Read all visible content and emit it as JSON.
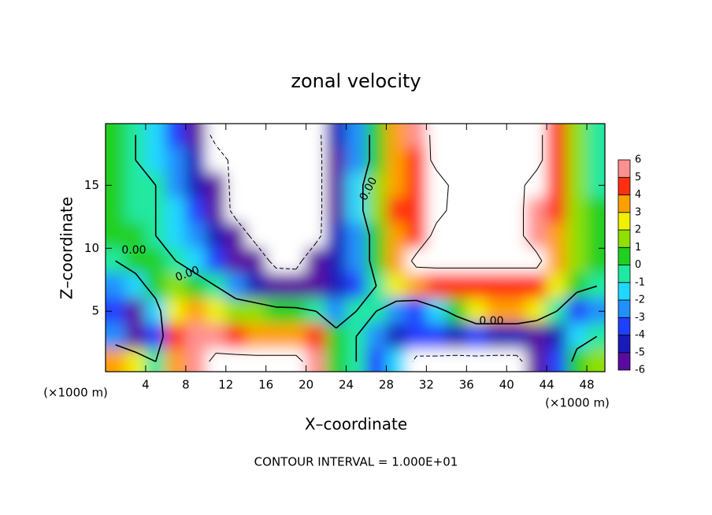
{
  "chart_data": {
    "type": "contour",
    "title": "zonal velocity",
    "xlabel": "X–coordinate",
    "ylabel": "Z–coordinate",
    "x_unit": "(×1000 m)",
    "x_unit_right": "(×1000 m)",
    "footer": "CONTOUR INTERVAL = 1.000E+01",
    "xlim": [
      0,
      49.8
    ],
    "ylim": [
      0.2,
      19.9
    ],
    "xticks": [
      4,
      8,
      12,
      16,
      20,
      24,
      28,
      32,
      36,
      40,
      44,
      48
    ],
    "yticks": [
      5,
      10,
      15
    ],
    "x": [
      1,
      3,
      5,
      7,
      9,
      11,
      13,
      15,
      17,
      19,
      21,
      23,
      25,
      27,
      29,
      31,
      33,
      35,
      37,
      39,
      41,
      43,
      45,
      47,
      49
    ],
    "y": [
      19,
      17,
      15,
      13,
      11,
      9,
      7,
      5,
      3,
      1
    ],
    "z": [
      [
        1,
        0,
        -1,
        -3,
        -5,
        -12,
        -12,
        -12,
        -12,
        -12,
        -12,
        -4,
        -2,
        1,
        4,
        6,
        12,
        12,
        12,
        12,
        12,
        12,
        5,
        2,
        0
      ],
      [
        1,
        0,
        -1,
        -2,
        -4,
        -7,
        -12,
        -12,
        -12,
        -12,
        -12,
        -5,
        -2,
        1,
        4,
        5,
        12,
        12,
        12,
        12,
        12,
        12,
        5,
        2,
        0
      ],
      [
        1,
        0,
        0,
        -2,
        -4,
        -6,
        -12,
        -12,
        -12,
        -12,
        -12,
        -5,
        -1,
        2,
        4,
        5,
        7,
        12,
        12,
        12,
        12,
        7,
        5,
        2,
        0
      ],
      [
        1,
        0,
        0,
        -1,
        -3,
        -5,
        -12,
        -12,
        -12,
        -12,
        -12,
        -5,
        -1,
        2,
        5,
        5,
        8,
        12,
        12,
        12,
        12,
        6,
        5,
        2,
        1
      ],
      [
        1,
        1,
        0,
        -1,
        -2,
        -4,
        -6,
        -12,
        -12,
        -12,
        -12,
        -4,
        -2,
        1,
        4,
        5,
        12,
        12,
        12,
        12,
        12,
        6,
        4,
        2,
        1
      ],
      [
        0,
        1,
        1,
        0,
        -1,
        -3,
        -5,
        -6,
        -12,
        -12,
        -5,
        -4,
        -2,
        1,
        4,
        12,
        12,
        12,
        12,
        12,
        12,
        12,
        4,
        2,
        1
      ],
      [
        -2,
        -1,
        1,
        2,
        1,
        0,
        -2,
        -4,
        -5,
        -6,
        -6,
        -4,
        -3,
        0,
        3,
        4,
        5,
        5,
        5,
        5,
        5,
        5,
        3,
        1,
        0
      ],
      [
        -3,
        -5,
        -1,
        3,
        4,
        3,
        2,
        2,
        1,
        1,
        0,
        -2,
        0,
        0,
        -2,
        -3,
        -1,
        1,
        3,
        4,
        4,
        3,
        0,
        -3,
        -2
      ],
      [
        -2,
        -5,
        -3,
        5,
        6,
        6,
        5,
        4,
        4,
        4,
        5,
        1,
        0,
        -2,
        -4,
        -3,
        -3,
        -4,
        -3,
        -4,
        -4,
        -5,
        -4,
        -1,
        0
      ],
      [
        4,
        3,
        0,
        4,
        6,
        12,
        12,
        12,
        12,
        12,
        6,
        1,
        0,
        -3,
        -1,
        -12,
        -12,
        -12,
        -12,
        -12,
        -12,
        -5,
        -3,
        1,
        2
      ]
    ],
    "colorbar_levels": [
      -6,
      -5,
      -4,
      -3,
      -2,
      -1,
      0,
      1,
      2,
      3,
      4,
      5,
      6
    ],
    "colorbar_colors": [
      "#5a0aa0",
      "#1a1ab8",
      "#2040ff",
      "#2090ff",
      "#20d8ff",
      "#20e8a0",
      "#20d020",
      "#90e000",
      "#f0f000",
      "#ffa000",
      "#ff3010",
      "#ff9090"
    ],
    "contour_levels": [
      -10,
      0,
      10
    ],
    "contour_labels": [
      {
        "value": 0,
        "label": "0.00"
      }
    ]
  }
}
